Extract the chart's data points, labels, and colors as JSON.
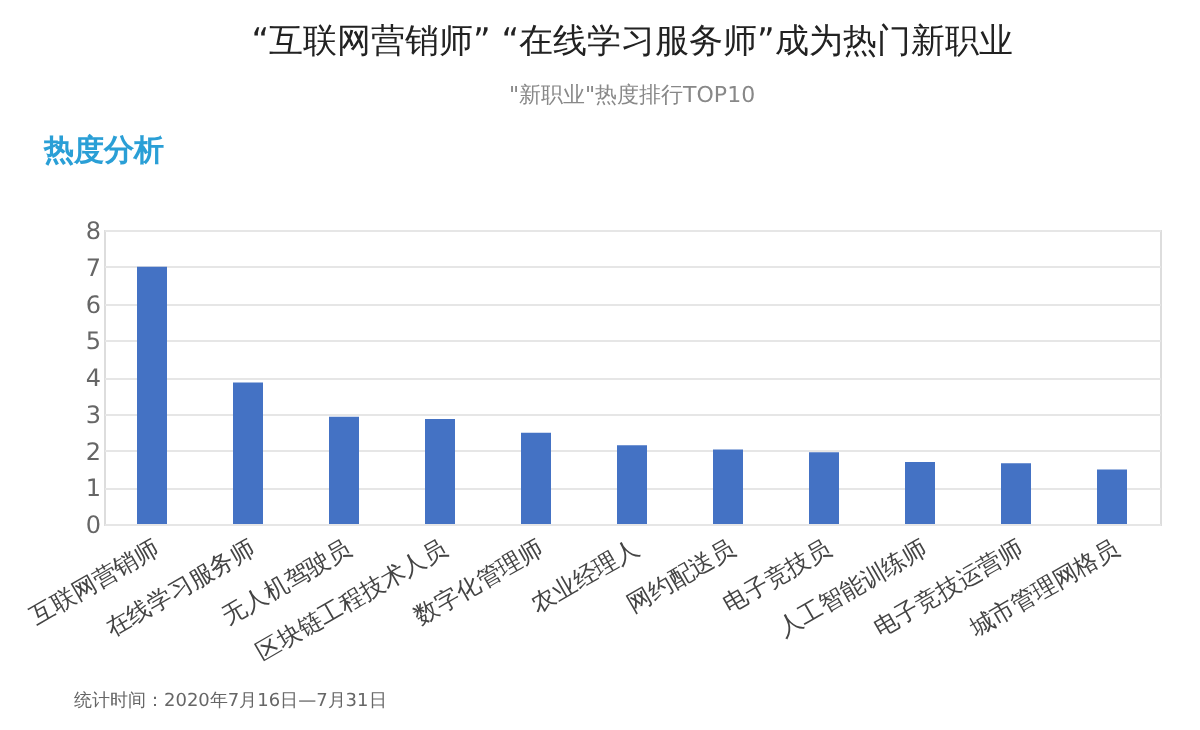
{
  "chart_data": {
    "type": "bar",
    "title": "“互联网营销师” “在线学习服务师”成为热门新职业",
    "subtitle": "\"新职业\"热度排行TOP10",
    "categories": [
      "互联网营销师",
      "在线学习服务师",
      "无人机驾驶员",
      "区块链工程技术人员",
      "数字化管理师",
      "农业经理人",
      "网约配送员",
      "电子竞技员",
      "人工智能训练师",
      "电子竞技运营师",
      "城市管理网格员"
    ],
    "values": [
      7.0,
      3.85,
      2.92,
      2.86,
      2.48,
      2.14,
      2.03,
      1.95,
      1.69,
      1.65,
      1.48
    ],
    "color": "#4472c4",
    "ylim": [
      0,
      8
    ],
    "yticks": [
      0,
      1,
      2,
      3,
      4,
      5,
      6,
      7,
      8
    ],
    "grid": "y",
    "annotations": [
      "热度分析",
      "统计时间：2020年7月16日—7月31日"
    ]
  }
}
